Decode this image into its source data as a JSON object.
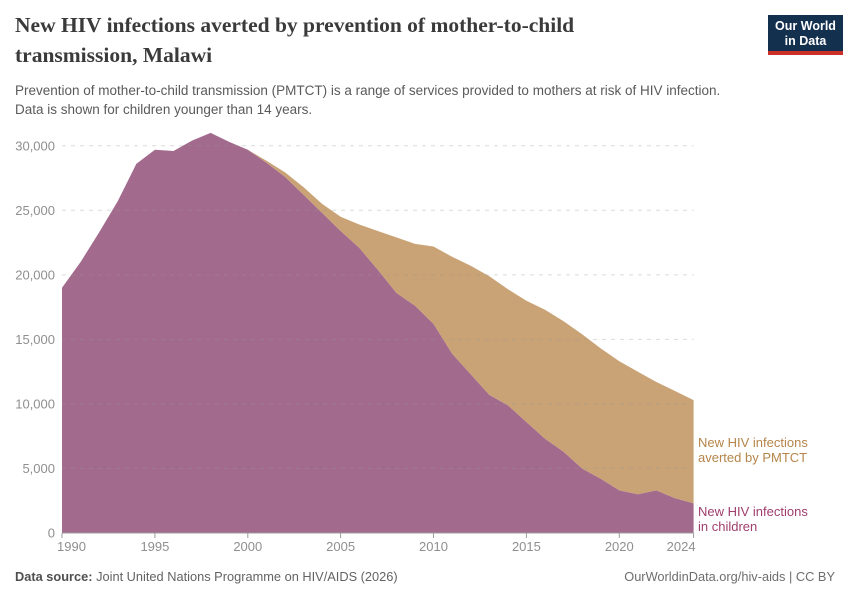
{
  "header": {
    "title_lines": [
      "New HIV infections averted by prevention of mother-to-child",
      "transmission, Malawi"
    ],
    "subtitle_lines": [
      "Prevention of mother-to-child transmission (PMTCT) is a range of services provided to mothers at risk of HIV infection.",
      "Data is shown for children younger than 14 years."
    ],
    "logo": {
      "line1": "Our World",
      "line2": "in Data",
      "bg_color": "#14304f",
      "accent_color": "#ca3027"
    }
  },
  "chart_data": {
    "type": "area",
    "stacked": true,
    "title": "New HIV infections averted by prevention of mother-to-child transmission, Malawi",
    "xlabel": "",
    "ylabel": "",
    "xlim": [
      1990,
      2024
    ],
    "ylim": [
      0,
      31000
    ],
    "grid": true,
    "legend_position": "right-annotations",
    "x": [
      1990,
      1991,
      1992,
      1993,
      1994,
      1995,
      1996,
      1997,
      1998,
      1999,
      2000,
      2001,
      2002,
      2003,
      2004,
      2005,
      2006,
      2007,
      2008,
      2009,
      2010,
      2011,
      2012,
      2013,
      2014,
      2015,
      2016,
      2017,
      2018,
      2019,
      2020,
      2021,
      2022,
      2023,
      2024
    ],
    "series": [
      {
        "name": "New HIV infections in children",
        "label_lines": [
          "New HIV infections",
          "in children"
        ],
        "color": "#a26a8c",
        "label_color": "#a03e6e",
        "values": [
          19000,
          21000,
          23300,
          25700,
          28600,
          29700,
          29600,
          30400,
          31000,
          30300,
          29700,
          28700,
          27600,
          26200,
          24800,
          23400,
          22100,
          20400,
          18600,
          17600,
          16200,
          13900,
          12300,
          10700,
          9900,
          8600,
          7300,
          6300,
          5000,
          4200,
          3300,
          3000,
          3300,
          2700,
          2300
        ]
      },
      {
        "name": "New HIV infections averted by PMTCT",
        "label_lines": [
          "New HIV infections",
          "averted by PMTCT"
        ],
        "color": "#c9a376",
        "label_color": "#b5854a",
        "values": [
          0,
          0,
          0,
          0,
          0,
          0,
          0,
          0,
          0,
          0,
          0,
          150,
          350,
          600,
          700,
          1100,
          1800,
          3000,
          4300,
          4800,
          6000,
          7500,
          8400,
          9200,
          9000,
          9400,
          10000,
          10100,
          10400,
          10100,
          10000,
          9500,
          8400,
          8300,
          8000
        ]
      }
    ],
    "y_ticks": [
      {
        "value": 0,
        "label": "0"
      },
      {
        "value": 5000,
        "label": "5,000"
      },
      {
        "value": 10000,
        "label": "10,000"
      },
      {
        "value": 15000,
        "label": "15,000"
      },
      {
        "value": 20000,
        "label": "20,000"
      },
      {
        "value": 25000,
        "label": "25,000"
      },
      {
        "value": 30000,
        "label": "30,000"
      }
    ],
    "x_ticks": [
      {
        "value": 1990,
        "label": "1990"
      },
      {
        "value": 1995,
        "label": "1995"
      },
      {
        "value": 2000,
        "label": "2000"
      },
      {
        "value": 2005,
        "label": "2005"
      },
      {
        "value": 2010,
        "label": "2010"
      },
      {
        "value": 2015,
        "label": "2015"
      },
      {
        "value": 2020,
        "label": "2020"
      },
      {
        "value": 2024,
        "label": "2024"
      }
    ],
    "axis_color": "#9c9c9c",
    "tick_label_color": "#8f8f8f",
    "gridline_color": "#999999"
  },
  "footer": {
    "source_label": "Data source:",
    "source_text": "Joint United Nations Programme on HIV/AIDS (2026)",
    "license_text": "OurWorldinData.org/hiv-aids | CC BY"
  }
}
